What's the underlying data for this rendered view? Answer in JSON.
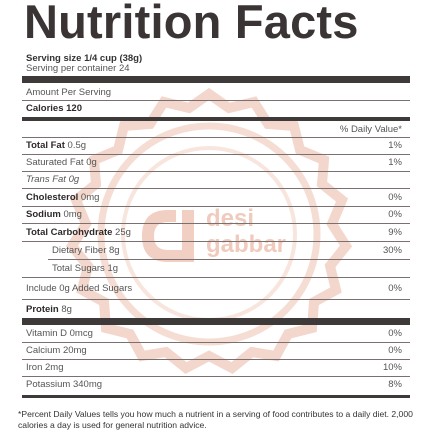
{
  "title": "Nutrition Facts",
  "serving_size": "Serving size 1/4 cup (38g)",
  "servings_per_container": "Serving per container 24",
  "amount_per_serving": "Amount Per Serving",
  "calories": "Calories 120",
  "dv_header": "% Daily Value*",
  "watermark": {
    "line1": "desi",
    "line2": "gabbar"
  },
  "rows": [
    {
      "label": "Total Fat",
      "amount": " 0.5g",
      "dv": "1%"
    },
    {
      "label": "Saturated Fat 0g",
      "dv": "1%"
    },
    {
      "label": "Trans Fat 0g",
      "dv": ""
    },
    {
      "label": "Cholesterol",
      "amount": " 0mg",
      "dv": "0%"
    },
    {
      "label": "Sodium",
      "amount": " 0mg",
      "dv": "0%"
    },
    {
      "label": "Total Carbohydrate",
      "amount": " 25g",
      "dv": "9%"
    },
    {
      "label": "Dietary Fiber 8g",
      "dv": "30%"
    },
    {
      "label": "Total Sugars 1g",
      "dv": ""
    },
    {
      "label": "Include 0g Added Sugars",
      "dv": "0%"
    },
    {
      "label": "Protein",
      "amount": " 8g",
      "dv": ""
    },
    {
      "label": "Vitamin D 0mcg",
      "dv": "0%"
    },
    {
      "label": "Calcium 20mg",
      "dv": "0%"
    },
    {
      "label": "Iron 2mg",
      "dv": "10%"
    },
    {
      "label": "Potassium 340mg",
      "dv": "8%"
    }
  ],
  "footnote": "*Percent Daily Values tells you how much a nutrient in a serving of food contributes to a daily diet. 2,000 calories a day is used for general nutrition advice."
}
